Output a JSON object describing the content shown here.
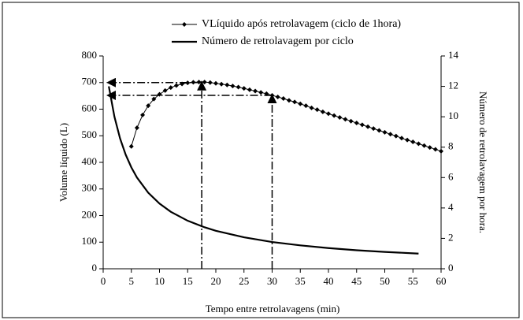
{
  "chart_data": {
    "type": "line",
    "x_label": "Tempo entre retrolavagens (min)",
    "y_label": "Volume líquido (L)",
    "y2_label": "Número de retrolavagem por hora.",
    "xlim": [
      0,
      60
    ],
    "xticks": [
      0,
      5,
      10,
      15,
      20,
      25,
      30,
      35,
      40,
      45,
      50,
      55,
      60
    ],
    "ylim": [
      0,
      800
    ],
    "yticks": [
      0,
      100,
      200,
      300,
      400,
      500,
      600,
      700,
      800
    ],
    "y2lim": [
      0,
      14
    ],
    "y2ticks": [
      0,
      2,
      4,
      6,
      8,
      10,
      12,
      14
    ],
    "legend": "top",
    "series": [
      {
        "name": "VLíquido após retrolavagem (ciclo de 1hora)",
        "color": "#000000",
        "marker": "diamond",
        "x": [
          5,
          6,
          7,
          8,
          9,
          10,
          11,
          12,
          13,
          14,
          15,
          16,
          17,
          18,
          19,
          20,
          21,
          22,
          23,
          24,
          25,
          26,
          27,
          28,
          29,
          30,
          31,
          32,
          33,
          34,
          35,
          36,
          37,
          38,
          39,
          40,
          41,
          42,
          43,
          44,
          45,
          46,
          47,
          48,
          49,
          50,
          51,
          52,
          53,
          54,
          55,
          56,
          57,
          58,
          59,
          60
        ],
        "values": [
          460,
          530,
          578,
          613,
          638,
          656,
          670,
          681,
          689,
          695,
          699,
          701,
          702,
          702,
          700,
          697,
          694,
          691,
          687,
          683,
          678,
          673,
          668,
          663,
          658,
          652,
          646,
          640,
          633,
          627,
          620,
          613,
          605,
          598,
          590,
          583,
          576,
          569,
          562,
          555,
          548,
          541,
          534,
          527,
          520,
          513,
          506,
          499,
          491,
          484,
          477,
          470,
          463,
          456,
          449,
          442
        ]
      },
      {
        "name": "Número de retrolavagem  por ciclo",
        "color": "#000000",
        "marker": "none",
        "axis": "y2",
        "x": [
          1,
          2,
          3,
          4,
          5,
          6,
          8,
          10,
          12,
          15,
          18,
          20,
          25,
          30,
          35,
          40,
          45,
          50,
          56
        ],
        "values": [
          12,
          10,
          8.57,
          7.5,
          6.67,
          6,
          5,
          4.29,
          3.75,
          3.16,
          2.73,
          2.5,
          2.07,
          1.76,
          1.54,
          1.36,
          1.22,
          1.11,
          1.0
        ]
      }
    ],
    "reference_lines": [
      {
        "x": 17.5,
        "y": 700
      },
      {
        "x": 30,
        "y": 652
      }
    ]
  }
}
